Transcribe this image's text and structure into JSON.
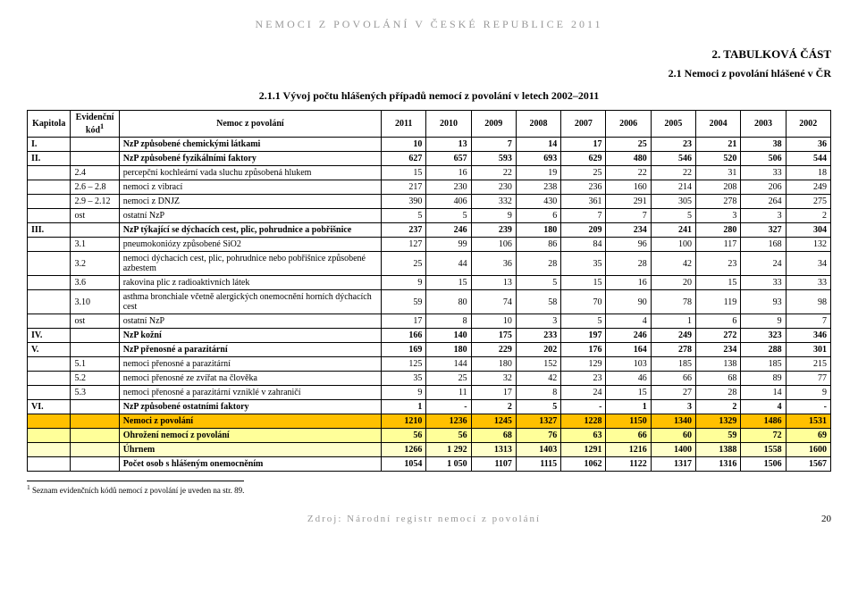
{
  "header": "NEMOCI Z POVOLÁNÍ V ČESKÉ REPUBLICE 2011",
  "section_title": "2. TABULKOVÁ ČÁST",
  "subtitle": "2.1 Nemoci z povolání hlášené v ČR",
  "table_title": "2.1.1 Vývoj počtu hlášených případů nemocí z povolání v letech 2002–2011",
  "cols": {
    "c1": "Kapitola",
    "c2": "Evidenční kód",
    "c2_sup": "1",
    "c3": "Nemoc z povolání"
  },
  "years": [
    "2011",
    "2010",
    "2009",
    "2008",
    "2007",
    "2006",
    "2005",
    "2004",
    "2003",
    "2002"
  ],
  "rows": [
    {
      "kap": "I.",
      "kod": "",
      "label": "NzP způsobené chemickými látkami",
      "v": [
        "10",
        "13",
        "7",
        "14",
        "17",
        "25",
        "23",
        "21",
        "38",
        "36"
      ],
      "cls": "bold"
    },
    {
      "kap": "II.",
      "kod": "",
      "label": "NzP způsobené fyzikálními faktory",
      "v": [
        "627",
        "657",
        "593",
        "693",
        "629",
        "480",
        "546",
        "520",
        "506",
        "544"
      ],
      "cls": "bold"
    },
    {
      "kap": "",
      "kod": "2.4",
      "label": "percepční kochleární vada sluchu způsobená hlukem",
      "v": [
        "15",
        "16",
        "22",
        "19",
        "25",
        "22",
        "22",
        "31",
        "33",
        "18"
      ],
      "cls": ""
    },
    {
      "kap": "",
      "kod": "2.6 – 2.8",
      "label": "nemoci z vibrací",
      "v": [
        "217",
        "230",
        "230",
        "238",
        "236",
        "160",
        "214",
        "208",
        "206",
        "249"
      ],
      "cls": ""
    },
    {
      "kap": "",
      "kod": "2.9 – 2.12",
      "label": "nemoci z DNJZ",
      "v": [
        "390",
        "406",
        "332",
        "430",
        "361",
        "291",
        "305",
        "278",
        "264",
        "275"
      ],
      "cls": ""
    },
    {
      "kap": "",
      "kod": "ost",
      "label": "ostatní NzP",
      "v": [
        "5",
        "5",
        "9",
        "6",
        "7",
        "7",
        "5",
        "3",
        "3",
        "2"
      ],
      "cls": ""
    },
    {
      "kap": "III.",
      "kod": "",
      "label": "NzP týkající se dýchacích cest, plic, pohrudnice a pobřišnice",
      "v": [
        "237",
        "246",
        "239",
        "180",
        "209",
        "234",
        "241",
        "280",
        "327",
        "304"
      ],
      "cls": "bold"
    },
    {
      "kap": "",
      "kod": "3.1",
      "label": "pneumokoniózy způsobené SiO2",
      "v": [
        "127",
        "99",
        "106",
        "86",
        "84",
        "96",
        "100",
        "117",
        "168",
        "132"
      ],
      "cls": ""
    },
    {
      "kap": "",
      "kod": "3.2",
      "label": "nemoci dýchacích cest, plic, pohrudnice nebo pobřišnice způsobené azbestem",
      "v": [
        "25",
        "44",
        "36",
        "28",
        "35",
        "28",
        "42",
        "23",
        "24",
        "34"
      ],
      "cls": ""
    },
    {
      "kap": "",
      "kod": "3.6",
      "label": "rakovina plic z radioaktivních látek",
      "v": [
        "9",
        "15",
        "13",
        "5",
        "15",
        "16",
        "20",
        "15",
        "33",
        "33"
      ],
      "cls": ""
    },
    {
      "kap": "",
      "kod": "3.10",
      "label": "asthma bronchiale včetně alergických onemocnění horních dýchacích cest",
      "v": [
        "59",
        "80",
        "74",
        "58",
        "70",
        "90",
        "78",
        "119",
        "93",
        "98"
      ],
      "cls": ""
    },
    {
      "kap": "",
      "kod": "ost",
      "label": "ostatní NzP",
      "v": [
        "17",
        "8",
        "10",
        "3",
        "5",
        "4",
        "1",
        "6",
        "9",
        "7"
      ],
      "cls": ""
    },
    {
      "kap": "IV.",
      "kod": "",
      "label": "NzP kožní",
      "v": [
        "166",
        "140",
        "175",
        "233",
        "197",
        "246",
        "249",
        "272",
        "323",
        "346"
      ],
      "cls": "bold"
    },
    {
      "kap": "V.",
      "kod": "",
      "label": "NzP přenosné a parazitární",
      "v": [
        "169",
        "180",
        "229",
        "202",
        "176",
        "164",
        "278",
        "234",
        "288",
        "301"
      ],
      "cls": "bold"
    },
    {
      "kap": "",
      "kod": "5.1",
      "label": "nemoci přenosné a parazitární",
      "v": [
        "125",
        "144",
        "180",
        "152",
        "129",
        "103",
        "185",
        "138",
        "185",
        "215"
      ],
      "cls": ""
    },
    {
      "kap": "",
      "kod": "5.2",
      "label": "nemoci přenosné ze zvířat na člověka",
      "v": [
        "35",
        "25",
        "32",
        "42",
        "23",
        "46",
        "66",
        "68",
        "89",
        "77"
      ],
      "cls": ""
    },
    {
      "kap": "",
      "kod": "5.3",
      "label": "nemoci přenosné a parazitární vzniklé v zahraničí",
      "v": [
        "9",
        "11",
        "17",
        "8",
        "24",
        "15",
        "27",
        "28",
        "14",
        "9"
      ],
      "cls": ""
    },
    {
      "kap": "VI.",
      "kod": "",
      "label": "NzP způsobené ostatními faktory",
      "v": [
        "1",
        "-",
        "2",
        "5",
        "-",
        "1",
        "3",
        "2",
        "4",
        "-"
      ],
      "cls": "bold"
    },
    {
      "kap": "",
      "kod": "",
      "label": "Nemoci z povolání",
      "v": [
        "1210",
        "1236",
        "1245",
        "1327",
        "1228",
        "1150",
        "1340",
        "1329",
        "1486",
        "1531"
      ],
      "cls": "total"
    },
    {
      "kap": "",
      "kod": "",
      "label": "Ohrožení nemocí z povolání",
      "v": [
        "56",
        "56",
        "68",
        "76",
        "63",
        "66",
        "60",
        "59",
        "72",
        "69"
      ],
      "cls": "threat"
    },
    {
      "kap": "",
      "kod": "",
      "label": "Úhrnem",
      "v": [
        "1266",
        "1 292",
        "1313",
        "1403",
        "1291",
        "1216",
        "1400",
        "1388",
        "1558",
        "1600"
      ],
      "cls": "sum"
    },
    {
      "kap": "",
      "kod": "",
      "label": "Počet osob s hlášeným onemocněním",
      "v": [
        "1054",
        "1 050",
        "1107",
        "1115",
        "1062",
        "1122",
        "1317",
        "1316",
        "1506",
        "1567"
      ],
      "cls": "persons"
    }
  ],
  "footnote": "Seznam evidenčních kódů nemocí z povolání je uveden na str. 89.",
  "footnote_marker": "1",
  "footer": "Zdroj: Národní registr nemocí z povolání",
  "page_no": "20"
}
